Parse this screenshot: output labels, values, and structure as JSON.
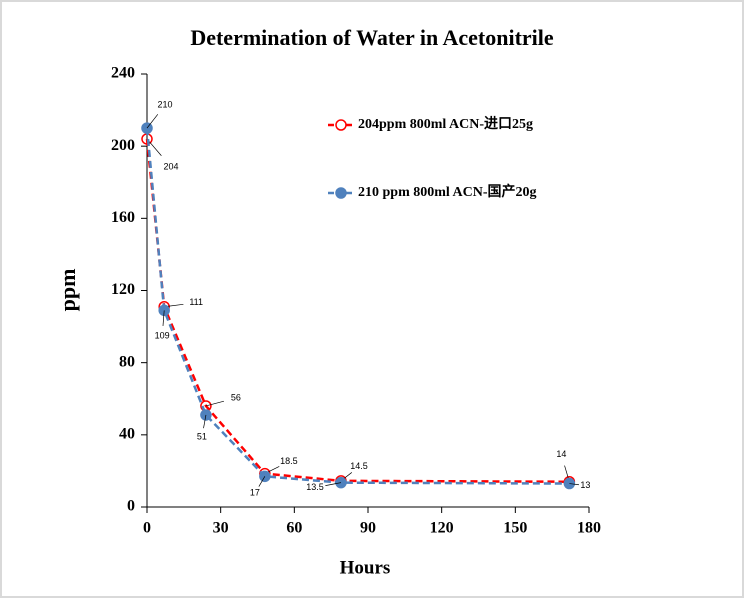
{
  "chart_data": {
    "type": "line",
    "title": "Determination of Water in Acetonitrile",
    "x_label": "Hours",
    "y_label": "ppm",
    "xlim": [
      0,
      180
    ],
    "xticks": [
      0,
      30,
      60,
      90,
      120,
      150,
      180
    ],
    "ylim": [
      0,
      240
    ],
    "yticks": [
      0,
      40,
      80,
      120,
      160,
      200,
      240
    ],
    "series": [
      {
        "name": "204ppm  800ml ACN-进口25g",
        "color": "#ff0000",
        "marker": "open",
        "x": [
          0,
          7,
          24,
          48,
          79,
          172
        ],
        "values": [
          204,
          111,
          56,
          18.5,
          14.5,
          14
        ]
      },
      {
        "name": "210 ppm 800ml ACN-国产20g",
        "color": "#4f81bd",
        "marker": "filled",
        "x": [
          0,
          7,
          24,
          48,
          79,
          172
        ],
        "values": [
          210,
          109,
          51,
          17,
          13.5,
          13
        ]
      }
    ]
  }
}
